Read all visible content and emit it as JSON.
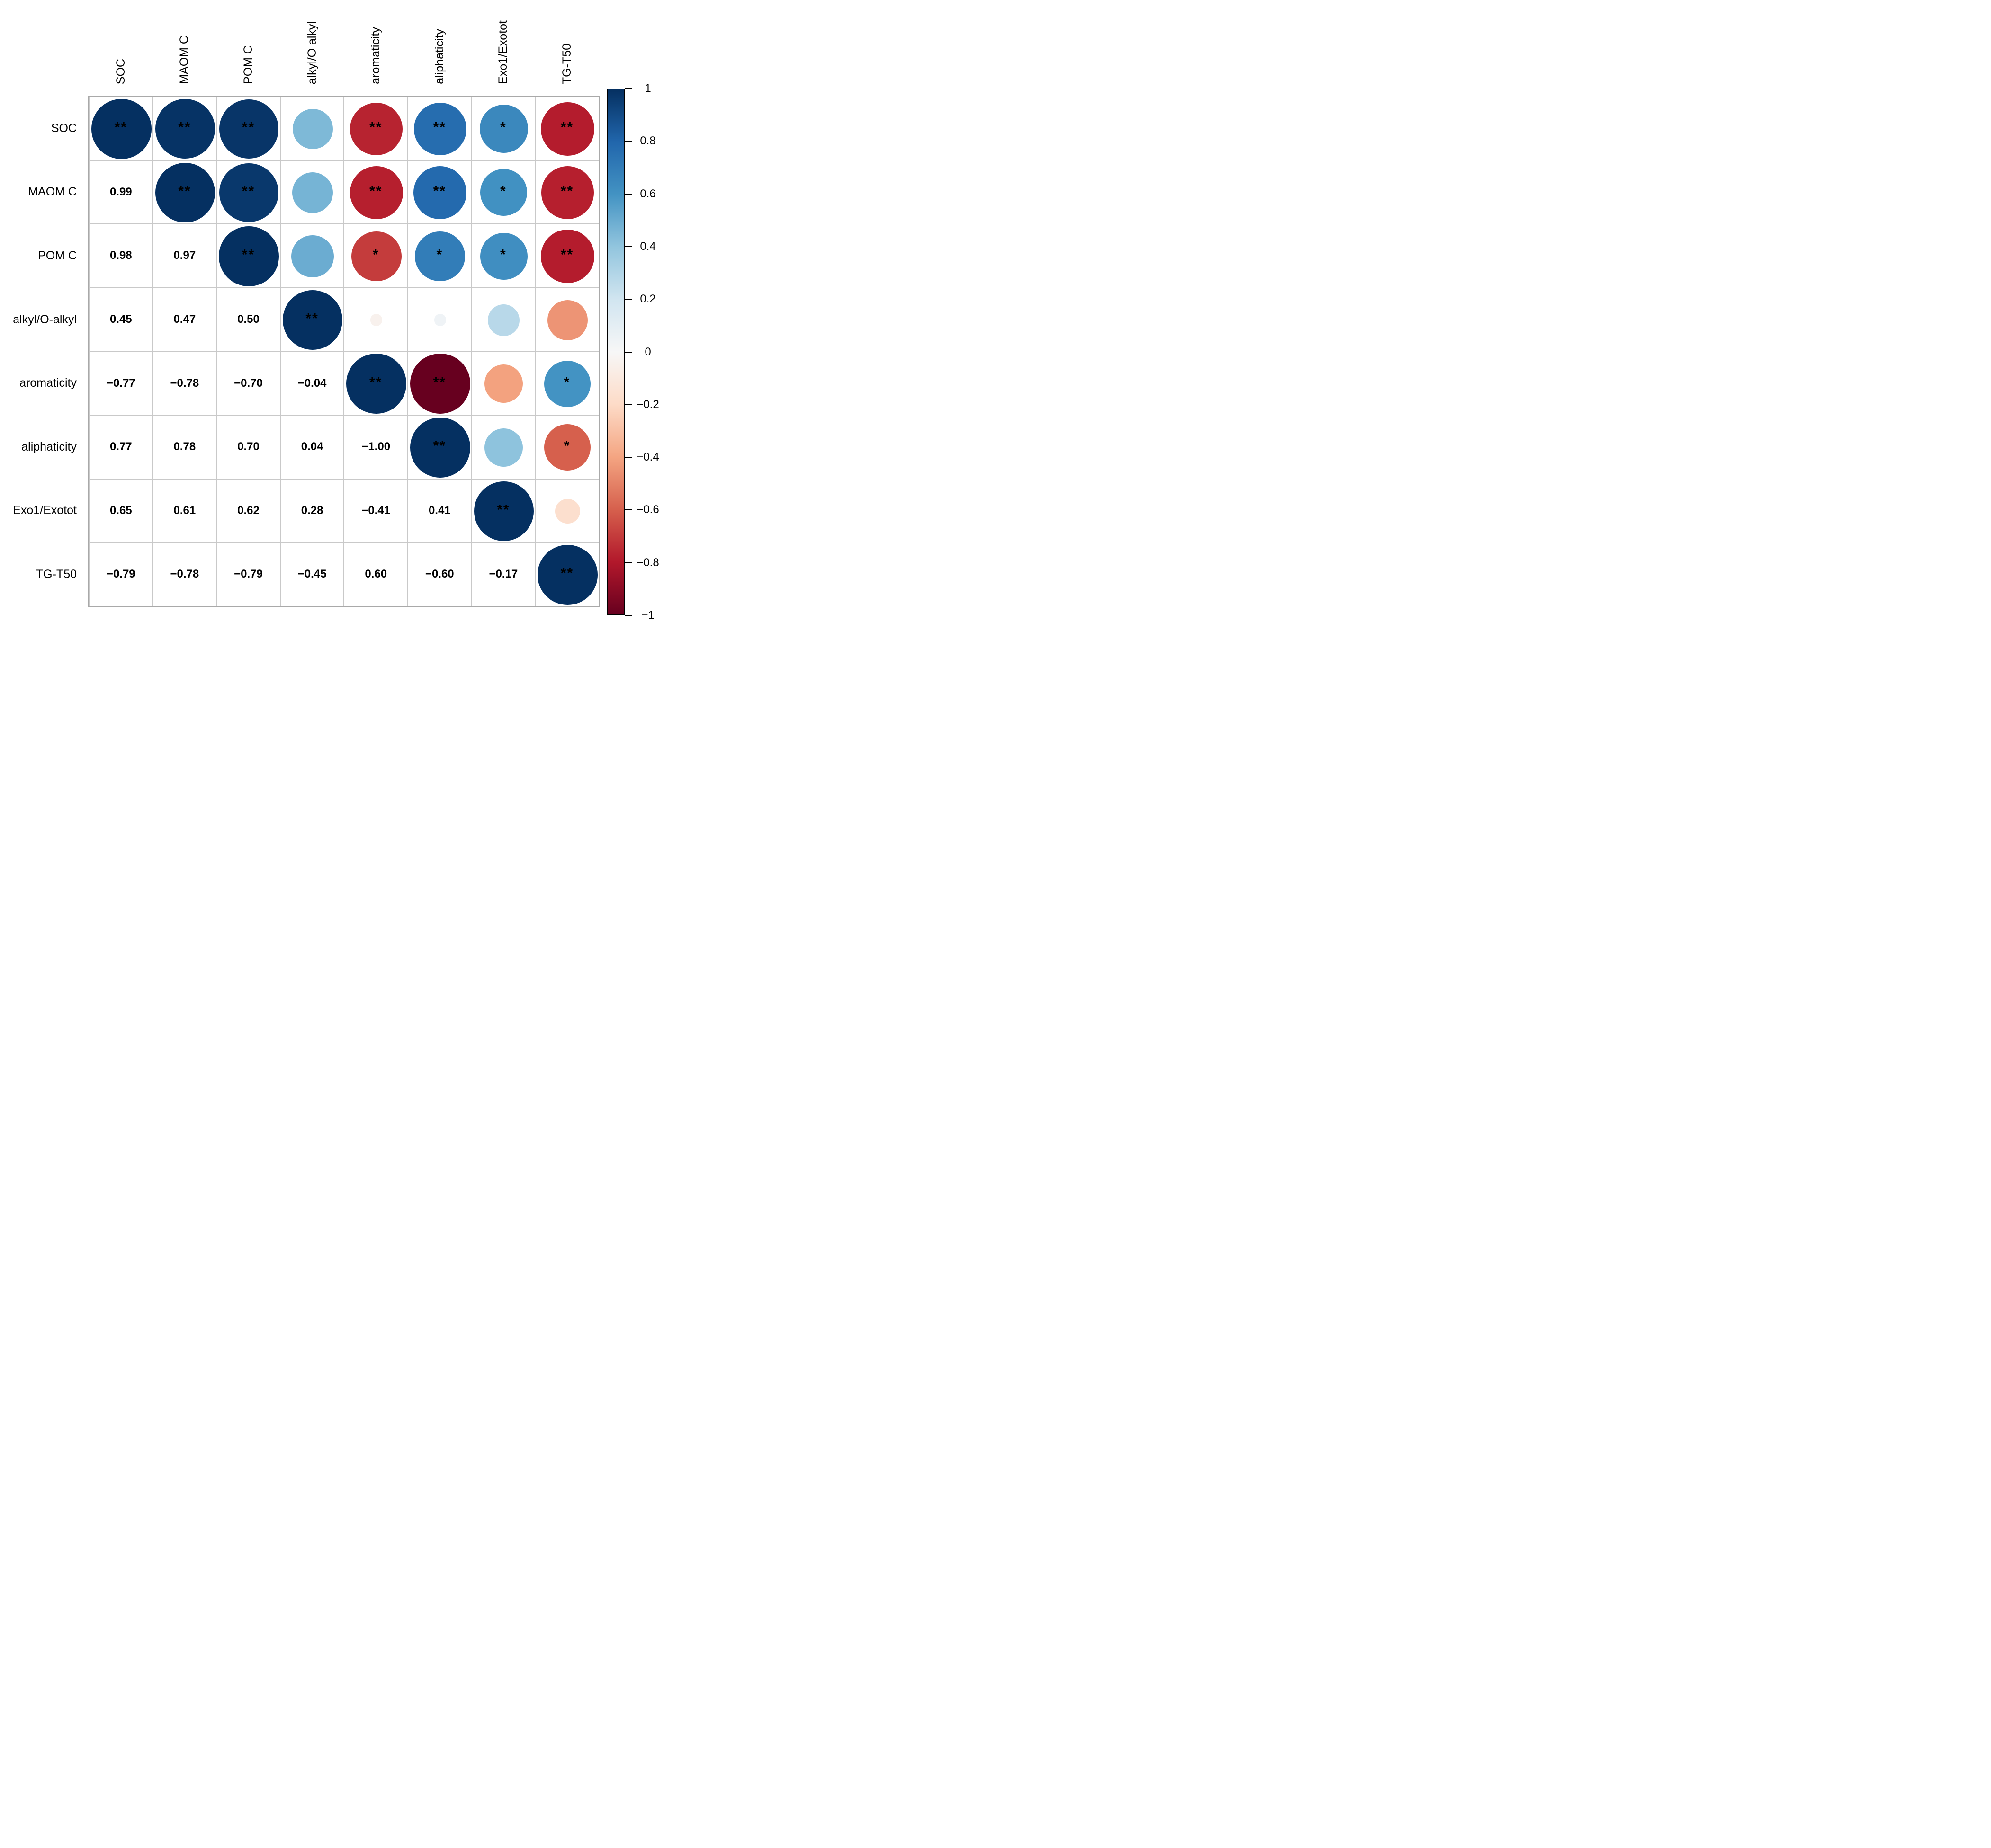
{
  "chart_data": {
    "type": "heatmap",
    "subtype": "correlation-matrix-corrplot",
    "title": "",
    "row_labels": [
      "SOC",
      "MAOM C",
      "POM C",
      "alkyl/O-alkyl",
      "aromaticity",
      "aliphaticity",
      "Exo1/Exotot",
      "TG-T50"
    ],
    "col_labels": [
      "SOC",
      "MAOM C",
      "POM C",
      "alkyl/O alkyl",
      "aromaticity",
      "aliphaticity",
      "Exo1/Exotot",
      "TG-T50"
    ],
    "matrix": [
      [
        1.0,
        0.99,
        0.98,
        0.45,
        -0.77,
        0.77,
        0.65,
        -0.79
      ],
      [
        0.99,
        1.0,
        0.97,
        0.47,
        -0.78,
        0.78,
        0.61,
        -0.78
      ],
      [
        0.98,
        0.97,
        1.0,
        0.5,
        -0.7,
        0.7,
        0.62,
        -0.79
      ],
      [
        0.45,
        0.47,
        0.5,
        1.0,
        -0.04,
        0.04,
        0.28,
        -0.45
      ],
      [
        -0.77,
        -0.78,
        -0.7,
        -0.04,
        1.0,
        -1.0,
        -0.41,
        0.6
      ],
      [
        0.77,
        0.78,
        0.7,
        0.04,
        -1.0,
        1.0,
        0.41,
        -0.6
      ],
      [
        0.65,
        0.61,
        0.62,
        0.28,
        -0.41,
        0.41,
        1.0,
        -0.17
      ],
      [
        -0.79,
        -0.78,
        -0.79,
        -0.45,
        0.6,
        -0.6,
        -0.17,
        1.0
      ]
    ],
    "significance": [
      [
        "**",
        "**",
        "**",
        "",
        "**",
        "**",
        "*",
        "**"
      ],
      [
        "",
        "**",
        "**",
        "",
        "**",
        "**",
        "*",
        "**"
      ],
      [
        "",
        "",
        "**",
        "",
        "*",
        "*",
        "*",
        "**"
      ],
      [
        "",
        "",
        "",
        "**",
        "",
        "",
        "",
        ""
      ],
      [
        "",
        "",
        "",
        "",
        "**",
        "**",
        "",
        "*"
      ],
      [
        "",
        "",
        "",
        "",
        "",
        "**",
        "",
        "*"
      ],
      [
        "",
        "",
        "",
        "",
        "",
        "",
        "**",
        ""
      ],
      [
        "",
        "",
        "",
        "",
        "",
        "",
        "",
        "**"
      ]
    ],
    "upper_triangle": "circles sized by |r|, colored by r, with significance stars",
    "lower_triangle": "correlation coefficients (2 decimals)",
    "diagonal": "full circles with ** stars",
    "colorbar": {
      "position": "right",
      "max": 1,
      "min": -1,
      "tick_labels": [
        "1",
        "0.8",
        "0.6",
        "0.4",
        "0.2",
        "0",
        "−0.2",
        "−0.4",
        "−0.6",
        "−0.8",
        "−1"
      ]
    },
    "color_scale": [
      "#67001F",
      "#B2182B",
      "#D6604D",
      "#F4A582",
      "#FDDBC7",
      "#F7F7F7",
      "#D1E5F0",
      "#92C5DE",
      "#4393C3",
      "#2166AC",
      "#053061"
    ],
    "grid": {
      "rows": 8,
      "cols": 8,
      "line_color": "#c9c9c9",
      "frame_color": "#a9a9a9",
      "background": "#ffffff"
    }
  }
}
